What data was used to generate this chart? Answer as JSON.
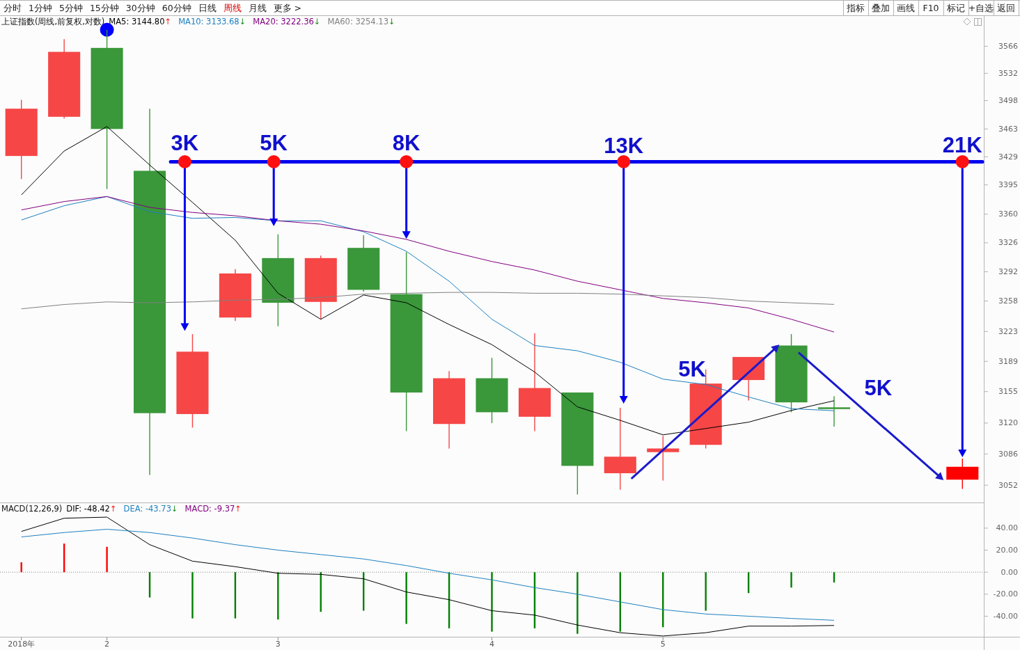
{
  "chart_data": [
    {
      "type": "other",
      "annotations": [
        "分时",
        "1分钟",
        "5分钟",
        "15分钟",
        "30分钟",
        "60分钟",
        "日线",
        "周线",
        "月线",
        "更多 >"
      ]
    },
    {
      "type": "other",
      "annotations": [
        "指标",
        "叠加",
        "画线",
        "F10",
        "标记",
        "+自选",
        "返回"
      ]
    },
    {
      "type": "candlestick",
      "title": "上证指数(周线,前复权,对数)",
      "categories": [
        null,
        null,
        null,
        null,
        null,
        null,
        null,
        null,
        null,
        null,
        null,
        null,
        null,
        null,
        null,
        null,
        null,
        null,
        null,
        null,
        null,
        null,
        null
      ],
      "ohlc": [
        [
          3430,
          3499,
          3402,
          3488
        ],
        [
          3478,
          3575,
          3476,
          3559
        ],
        [
          3564,
          3587,
          3390,
          3463
        ],
        [
          3412,
          3488,
          3063,
          3131
        ],
        [
          3130,
          3220,
          3115,
          3200
        ],
        [
          3239,
          3295,
          3235,
          3290
        ],
        [
          3308,
          3336,
          3229,
          3256
        ],
        [
          3257,
          3311,
          3237,
          3308
        ],
        [
          3320,
          3335,
          3269,
          3271
        ],
        [
          3266,
          3315,
          3111,
          3154
        ],
        [
          3119,
          3178,
          3092,
          3170
        ],
        [
          3170,
          3193,
          3120,
          3132
        ],
        [
          3127,
          3221,
          3111,
          3159
        ],
        [
          3154,
          3154,
          3042,
          3073
        ],
        [
          3065,
          3137,
          3047,
          3083
        ],
        [
          3088,
          3106,
          3057,
          3092
        ],
        [
          3096,
          3180,
          3092,
          3164
        ],
        [
          3168,
          3194,
          3145,
          3194
        ],
        [
          3207,
          3220,
          3132,
          3143
        ],
        [
          3137,
          3150,
          3116,
          3136
        ],
        null,
        null,
        [
          3058,
          3081,
          3048,
          3072
        ]
      ],
      "colors": [
        "#f64646",
        "#f64646",
        "#3a973a",
        "#3a973a",
        "#f64646",
        "#f64646",
        "#3a973a",
        "#f64646",
        "#3a973a",
        "#3a973a",
        "#f64646",
        "#3a973a",
        "#f64646",
        "#3a973a",
        "#f64646",
        "#f64646",
        "#f64646",
        "#f64646",
        "#3a973a",
        "#3a973a",
        null,
        null,
        "#ff0000"
      ],
      "series": [
        {
          "name": "MA5: 3144.80↑",
          "type": "line",
          "color": "#000000",
          "values": [
            3383,
            3436,
            3466,
            3419,
            3374,
            3329,
            3267,
            3237,
            3265,
            3256,
            3231,
            3208,
            3177,
            3138,
            3123,
            3107,
            3114,
            3121,
            3134,
            3144.8,
            null,
            null,
            null
          ]
        },
        {
          "name": "MA10: 3133.68↓",
          "type": "line",
          "color": "#1e80c0",
          "values": [
            3353,
            3370,
            3381,
            3363,
            3355,
            3356,
            3352,
            3352,
            3339,
            3316,
            3281,
            3237,
            3207,
            3201,
            3188,
            3169,
            3163,
            3149,
            3136,
            3133.68,
            null,
            null,
            null
          ]
        },
        {
          "name": "MA20: 3222.36↓",
          "type": "line",
          "color": "#800080",
          "values": [
            3365,
            3375,
            3381,
            3368,
            3362,
            3358,
            3352,
            3348,
            3340,
            3330,
            3316,
            3304,
            3294,
            3281,
            3271,
            3261,
            3256,
            3250,
            3237,
            3222.36,
            null,
            null,
            null
          ]
        },
        {
          "name": "MA60: 3254.13↓",
          "type": "line",
          "color": "#808080",
          "values": [
            3249,
            3254,
            3257,
            3256,
            3257,
            3259,
            3260,
            3262,
            3266,
            3267,
            3268,
            3268,
            3267,
            3267,
            3266,
            3264,
            3262,
            3258,
            3256,
            3254.13,
            null,
            null,
            null
          ]
        }
      ],
      "log": true,
      "ylim": [
        3033,
        3605
      ],
      "yticks": [
        3052,
        3086,
        3120,
        3155,
        3189,
        3223,
        3258,
        3292,
        3326,
        3360,
        3395,
        3429,
        3463,
        3498,
        3532,
        3566
      ],
      "legend": "top left",
      "ref_lines": [
        {
          "axis": "y",
          "value": 3423,
          "color": "#0000ee"
        }
      ],
      "annotations": [
        "3K",
        "5K",
        "8K",
        "13K",
        "21K",
        "5K",
        "5K"
      ]
    },
    {
      "type": "line",
      "title": "MACD(12,26,9)",
      "categories": [
        "2018年",
        null,
        "2",
        null,
        null,
        null,
        "3",
        null,
        null,
        null,
        null,
        "4",
        null,
        null,
        null,
        "5",
        null,
        null,
        null,
        null,
        null,
        null,
        null
      ],
      "series": [
        {
          "name": "DIF: -48.42↑",
          "type": "line",
          "color": "#000000",
          "values": [
            37,
            49,
            50,
            25,
            10,
            5,
            -1,
            -2,
            -6,
            -18,
            -25,
            -35,
            -39,
            -48,
            -55,
            -58,
            -55,
            -49,
            -49,
            -48.42,
            null,
            null,
            null
          ]
        },
        {
          "name": "DEA: -43.73↓",
          "type": "line",
          "color": "#1e80c0",
          "values": [
            32,
            36,
            39,
            36,
            31,
            25,
            20,
            16,
            12,
            6,
            -1,
            -7,
            -14,
            -20,
            -27,
            -34,
            -38,
            -40,
            -42,
            -43.73,
            null,
            null,
            null
          ]
        },
        {
          "type": "bar",
          "colors": [
            "#ff0000",
            "#ff0000",
            "#ff0000",
            "#008000",
            "#008000",
            "#008000",
            "#008000",
            "#008000",
            "#008000",
            "#008000",
            "#008000",
            "#008000",
            "#008000",
            "#008000",
            "#008000",
            "#008000",
            "#008000",
            "#008000",
            "#008000",
            "#008000",
            null,
            null,
            null
          ],
          "values": [
            9,
            26,
            23,
            -23,
            -42,
            -42,
            -43,
            -36,
            -35,
            -47,
            -51,
            -54,
            -51,
            -56,
            -54,
            -50,
            -35,
            -19,
            -14,
            -9.37,
            null,
            null,
            null
          ]
        }
      ],
      "ylim": [
        -59,
        63
      ],
      "yticks": [
        {
          "value": -40,
          "label": "-40.00"
        },
        {
          "value": -20,
          "label": "-20.00"
        },
        {
          "value": 0,
          "label": "0.00"
        },
        {
          "value": 20,
          "label": "20.00"
        },
        {
          "value": 40,
          "label": "40.00"
        }
      ],
      "legend": "top left",
      "ref_lines": [
        {
          "axis": "y",
          "value": 0,
          "line_style": "dotted",
          "color": "#808080"
        }
      ],
      "annotations": [
        "MACD: -9.37↑"
      ]
    }
  ]
}
